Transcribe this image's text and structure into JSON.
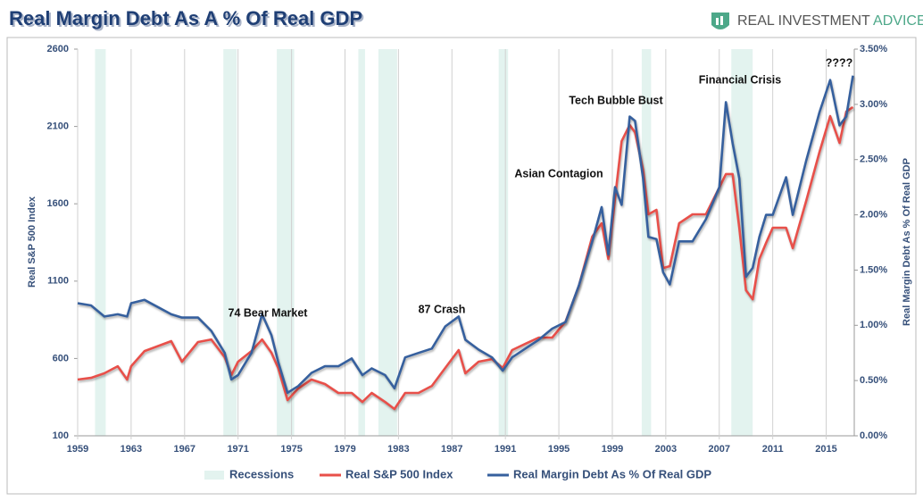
{
  "logo": {
    "brand": "REAL INVESTMENT",
    "tag": "ADVICE"
  },
  "chart_data": {
    "type": "line",
    "title": "Real Margin Debt As A % Of Real GDP",
    "y_label": "Real S&P 500 Index",
    "y2_label": "Real Margin Debt As % Of Real GDP",
    "annotations": [
      "74 Bear Market",
      "87 Crash",
      "Asian Contagion",
      "Tech Bubble Bust",
      "Financial Crisis",
      "????"
    ],
    "xlim": [
      1959,
      2017.1
    ],
    "xticks": [
      1959,
      1963,
      1967,
      1971,
      1975,
      1979,
      1983,
      1987,
      1991,
      1995,
      1999,
      2003,
      2007,
      2011,
      2015
    ],
    "ylim": [
      100,
      2600
    ],
    "yticks": [
      100,
      600,
      1100,
      1600,
      2100,
      2600
    ],
    "y2lim": [
      0,
      3.5
    ],
    "y2ticks": [
      {
        "value": 0,
        "label": "0.00%"
      },
      {
        "value": 0.5,
        "label": "0.50%"
      },
      {
        "value": 1,
        "label": "1.00%"
      },
      {
        "value": 1.5,
        "label": "1.50%"
      },
      {
        "value": 2,
        "label": "2.00%"
      },
      {
        "value": 2.5,
        "label": "2.50%"
      },
      {
        "value": 3,
        "label": "3.00%"
      },
      {
        "value": 3.5,
        "label": "3.50%"
      }
    ],
    "grid": false,
    "recessions": {
      "name": "Recessions",
      "color": "#e3f3ef",
      "ranges": [
        [
          1960.3,
          1961.1
        ],
        [
          1969.9,
          1970.9
        ],
        [
          1973.9,
          1975.2
        ],
        [
          1980.0,
          1980.5
        ],
        [
          1981.5,
          1982.9
        ],
        [
          1990.5,
          1991.2
        ],
        [
          2001.2,
          2001.9
        ],
        [
          2007.9,
          2009.5
        ]
      ]
    },
    "x": [
      1959,
      1960,
      1961,
      1962,
      1962.7,
      1963,
      1964,
      1966,
      1966.8,
      1968,
      1969,
      1970,
      1970.5,
      1971,
      1972,
      1972.8,
      1973.5,
      1974,
      1974.7,
      1975.5,
      1976.5,
      1977.5,
      1978.5,
      1979.5,
      1980.3,
      1981,
      1982,
      1982.7,
      1983.5,
      1984.5,
      1985.5,
      1986.5,
      1987.5,
      1988,
      1989,
      1990,
      1990.8,
      1991.5,
      1992.5,
      1993.5,
      1994.5,
      1995.5,
      1996.5,
      1997.5,
      1998.2,
      1998.7,
      1999.2,
      1999.7,
      2000.3,
      2000.7,
      2001.3,
      2001.7,
      2002.3,
      2002.8,
      2003.3,
      2004,
      2005,
      2006,
      2007,
      2007.5,
      2008,
      2008.5,
      2009,
      2009.5,
      2010,
      2010.5,
      2011,
      2012,
      2012.5,
      2013.5,
      2014.5,
      2015.3,
      2016,
      2016.5,
      2017
    ],
    "series": [
      {
        "name": "Real S&P 500 Index",
        "color": "#e8504a",
        "axis": "y",
        "values": [
          464,
          475,
          504,
          550,
          464,
          550,
          648,
          712,
          579,
          706,
          723,
          608,
          493,
          579,
          648,
          723,
          637,
          539,
          331,
          406,
          464,
          435,
          377,
          377,
          319,
          377,
          319,
          273,
          377,
          377,
          423,
          539,
          654,
          504,
          579,
          596,
          539,
          654,
          695,
          735,
          735,
          839,
          1070,
          1388,
          1474,
          1243,
          1637,
          2005,
          2109,
          2062,
          1820,
          1532,
          1561,
          1185,
          1197,
          1474,
          1532,
          1532,
          1705,
          1792,
          1792,
          1445,
          1041,
          983,
          1243,
          1347,
          1445,
          1445,
          1313,
          1618,
          1936,
          2167,
          1994,
          2196,
          2225
        ]
      },
      {
        "name": "Real Margin Debt As % Of Real GDP",
        "color": "#36609e",
        "axis": "y2",
        "values": [
          1.2,
          1.18,
          1.08,
          1.1,
          1.08,
          1.2,
          1.23,
          1.1,
          1.07,
          1.07,
          0.95,
          0.75,
          0.51,
          0.55,
          0.75,
          1.1,
          0.91,
          0.67,
          0.39,
          0.45,
          0.57,
          0.63,
          0.63,
          0.7,
          0.55,
          0.61,
          0.55,
          0.43,
          0.71,
          0.75,
          0.79,
          0.99,
          1.08,
          0.87,
          0.78,
          0.71,
          0.59,
          0.71,
          0.79,
          0.87,
          0.97,
          1.03,
          1.36,
          1.76,
          2.07,
          1.64,
          2.25,
          2.09,
          2.89,
          2.85,
          2.33,
          1.8,
          1.78,
          1.48,
          1.37,
          1.76,
          1.76,
          1.96,
          2.25,
          3.02,
          2.65,
          2.33,
          1.44,
          1.52,
          1.8,
          2.0,
          2.0,
          2.34,
          2.0,
          2.49,
          2.93,
          3.22,
          2.81,
          2.89,
          3.26
        ]
      }
    ]
  }
}
